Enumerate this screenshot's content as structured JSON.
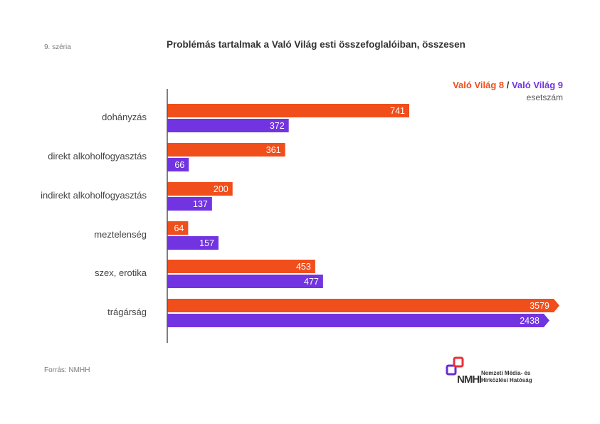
{
  "header": {
    "series_label": "9. széria",
    "title": "Problémás tartalmak a Való Világ esti összefoglalóiban, összesen"
  },
  "legend": {
    "series_a": "Való Világ 8",
    "separator": " / ",
    "series_b": "Való Világ 9",
    "unit": "esetszám"
  },
  "footer": {
    "source": "Forrás: NMHH",
    "logo_line1": "Nemzeti Média- és",
    "logo_line2": "Hírközlési Hatóság"
  },
  "colors": {
    "series_a": "#f04e1b",
    "series_b": "#7234e0",
    "axis": "#555555",
    "logo_red": "#e5323c",
    "logo_purple": "#6a2bd8"
  },
  "chart_data": {
    "type": "bar",
    "orientation": "horizontal",
    "title": "Problémás tartalmak a Való Világ esti összefoglalóiban, összesen",
    "xlabel": "esetszám",
    "ylabel": "",
    "categories": [
      "dohányzás",
      "direkt alkoholfogyasztás",
      "indirekt alkoholfogyasztás",
      "meztelenség",
      "szex, erotika",
      "trágárság"
    ],
    "series": [
      {
        "name": "Való Világ 8",
        "values": [
          741,
          361,
          200,
          64,
          453,
          3579
        ]
      },
      {
        "name": "Való Világ 9",
        "values": [
          372,
          66,
          137,
          157,
          477,
          2438
        ]
      }
    ],
    "xlim": [
      0,
      3579
    ],
    "scale_note": "trágárság bars are truncated (arrow-tipped), exceeding the visible scale",
    "scale_reference_max": 1250,
    "grid": false,
    "legend_position": "top-right"
  }
}
